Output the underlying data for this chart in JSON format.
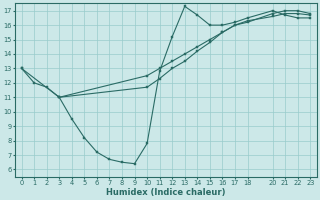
{
  "title": "",
  "xlabel": "Humidex (Indice chaleur)",
  "bg_color": "#cce8e8",
  "line_color": "#2a6b65",
  "grid_color": "#99cccc",
  "xlim": [
    -0.5,
    23.5
  ],
  "ylim": [
    5.5,
    17.5
  ],
  "xticks": [
    0,
    1,
    2,
    3,
    4,
    5,
    6,
    7,
    8,
    9,
    10,
    11,
    12,
    13,
    14,
    15,
    16,
    17,
    18,
    20,
    21,
    22,
    23
  ],
  "yticks": [
    6,
    7,
    8,
    9,
    10,
    11,
    12,
    13,
    14,
    15,
    16,
    17
  ],
  "line1_x": [
    0,
    1,
    2,
    3,
    4,
    5,
    6,
    7,
    8,
    9,
    10,
    11,
    12,
    13,
    14,
    15,
    16,
    17,
    18,
    20,
    21,
    22,
    23
  ],
  "line1_y": [
    13,
    12,
    11.7,
    11,
    9.5,
    8.2,
    7.2,
    6.7,
    6.5,
    6.4,
    7.8,
    12.8,
    15.2,
    17.3,
    16.7,
    16.0,
    16.0,
    16.2,
    16.5,
    17.0,
    16.7,
    16.5,
    16.5
  ],
  "line2_x": [
    3,
    10,
    11,
    12,
    13,
    14,
    15,
    16,
    17,
    18,
    20,
    21,
    22,
    23
  ],
  "line2_y": [
    11,
    12.5,
    13.0,
    13.5,
    14.0,
    14.5,
    15.0,
    15.5,
    16.0,
    16.2,
    16.8,
    17.0,
    17.0,
    16.8
  ],
  "line3_x": [
    0,
    3,
    10,
    11,
    12,
    13,
    14,
    15,
    16,
    17,
    18,
    20,
    21,
    22,
    23
  ],
  "line3_y": [
    13,
    11,
    11.7,
    12.3,
    13.0,
    13.5,
    14.2,
    14.8,
    15.5,
    16.0,
    16.3,
    16.6,
    16.8,
    16.8,
    16.7
  ]
}
